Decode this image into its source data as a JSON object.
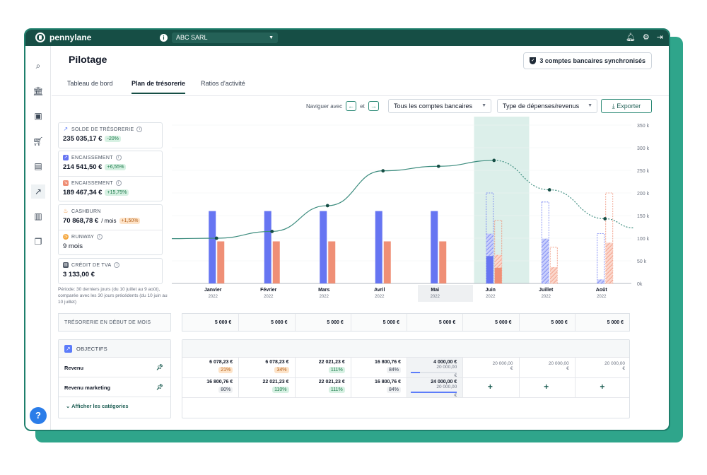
{
  "app": {
    "name": "pennylane",
    "company": "ABC SARL"
  },
  "page": {
    "title": "Pilotage",
    "sync_badge": "3 comptes bancaires synchronisés"
  },
  "tabs": [
    {
      "label": "Tableau de bord",
      "active": false
    },
    {
      "label": "Plan de trésorerie",
      "active": true
    },
    {
      "label": "Ratios d'activité",
      "active": false
    }
  ],
  "toolbar": {
    "nav_prefix": "Naviguer avec",
    "nav_and": "et",
    "prev_arrow": "←",
    "next_arrow": "→",
    "accounts_select": "Tous les comptes bancaires",
    "type_select": "Type de dépenses/revenus",
    "export_label": "Exporter"
  },
  "sidebar": {
    "icons": [
      "search-icon",
      "bank-icon",
      "wallet-icon",
      "cart-icon",
      "store-icon",
      "trend-icon",
      "folder-user-icon",
      "documents-icon"
    ],
    "active_index": 5,
    "help": "?"
  },
  "kpis": [
    {
      "label": "SOLDE DE TRÉSORERIE",
      "value": "235 035,17 €",
      "unit": "",
      "badge": "-20%",
      "badge_color": "green"
    },
    {
      "label": "ENCAISSEMENT",
      "value": "214 541,50 €",
      "unit": "",
      "badge": "+6,55%",
      "badge_color": "green"
    },
    {
      "label": "ENCAISSEMENT",
      "value": "189 467,34 €",
      "unit": "",
      "badge": "+15,75%",
      "badge_color": "green"
    },
    {
      "label": "CASHBURN",
      "value": "70 868,78 €",
      "unit": "/ mois",
      "badge": "+1,50%",
      "badge_color": "orange"
    },
    {
      "label": "RUNWAY",
      "value": "9 mois",
      "unit": "",
      "badge": "",
      "badge_color": ""
    },
    {
      "label": "CRÉDIT DE TVA",
      "value": "3 133,00 €",
      "unit": "",
      "badge": "",
      "badge_color": ""
    }
  ],
  "period_note": "Période: 30 derniers jours (du 10 juillet au 9 août), comparée avec les 30 jours précédents (du 10 juin au 10 juillet)",
  "chart_data": {
    "type": "bar",
    "categories": [
      "Janvier",
      "Février",
      "Mars",
      "Avril",
      "Mai",
      "Juin",
      "Juillet",
      "Août"
    ],
    "category_sublabels": [
      "2022",
      "2022",
      "2022",
      "2022",
      "2022",
      "2022",
      "2022",
      "2022"
    ],
    "highlighted_category": "Juin",
    "selected_category": "Mai",
    "y_ticks": [
      "350 k",
      "300 k",
      "250 k",
      "200 k",
      "150 k",
      "100 k",
      "50 k",
      "0k"
    ],
    "ylim": [
      0,
      350
    ],
    "series": [
      {
        "values": [
          160,
          160,
          160,
          160,
          160,
          200,
          180,
          110
        ],
        "projected_from_index": 5,
        "color": "#6675f2"
      },
      {
        "values": [
          93,
          93,
          93,
          93,
          93,
          140,
          80,
          200
        ],
        "projected_from_index": 5,
        "color": "#ef8f76"
      }
    ],
    "line": {
      "values": [
        100,
        115,
        172,
        249,
        259,
        272,
        207,
        143
      ],
      "projected_from_index": 5,
      "color": "#3c8c7e"
    }
  },
  "opening_row": {
    "label": "TRÉSORERIE EN DÉBUT DE MOIS",
    "values": [
      "5 000 €",
      "5 000 €",
      "5 000 €",
      "5 000 €",
      "5 000 €",
      "5 000 €",
      "5 000 €",
      "5 000 €"
    ]
  },
  "objectives": {
    "title": "OBJECTIFS",
    "rows": [
      {
        "label": "Revenu",
        "cells": [
          {
            "value": "6 078,23 €",
            "pill": "21%",
            "pill_color": "orange"
          },
          {
            "value": "6 078,23 €",
            "pill": "34%",
            "pill_color": "orange"
          },
          {
            "value": "22 021,23 €",
            "pill": "111%",
            "pill_color": "green"
          },
          {
            "value": "16 800,76 €",
            "pill": "84%",
            "pill_color": "grey"
          },
          {
            "value": "4 000,00 €",
            "target": "20 000,00",
            "target_unit": "€",
            "progress": 0.2
          },
          {
            "value": "",
            "target": "20 000,00",
            "target_unit": "€"
          },
          {
            "value": "",
            "target": "20 000,00",
            "target_unit": "€"
          },
          {
            "value": "",
            "target": "20 000,00",
            "target_unit": "€"
          }
        ]
      },
      {
        "label": "Revenu marketing",
        "cells": [
          {
            "value": "16 800,76 €",
            "pill": "80%",
            "pill_color": "grey"
          },
          {
            "value": "22 021,23 €",
            "pill": "110%",
            "pill_color": "green"
          },
          {
            "value": "22 021,23 €",
            "pill": "111%",
            "pill_color": "green"
          },
          {
            "value": "16 800,76 €",
            "pill": "84%",
            "pill_color": "grey"
          },
          {
            "value": "24 000,00 €",
            "target": "20 000,00",
            "target_unit": "€",
            "progress": 1.0
          },
          {
            "plus": "+"
          },
          {
            "plus": "+"
          },
          {
            "plus": "+"
          }
        ]
      }
    ],
    "show_categories": "Afficher les catégories"
  }
}
